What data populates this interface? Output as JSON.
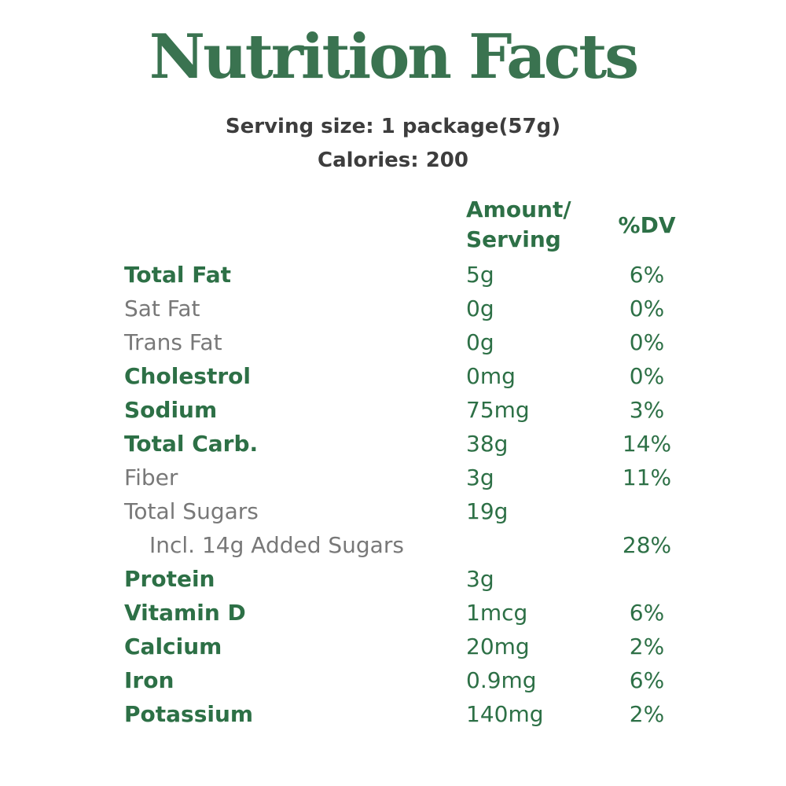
{
  "title": "Nutrition Facts",
  "serving": {
    "serving_size": "Serving size: 1 package(57g)",
    "calories": "Calories: 200"
  },
  "table": {
    "header": {
      "amount_line1": "Amount/",
      "amount_line2": "Serving",
      "dv": "%DV"
    },
    "rows": [
      {
        "label": "Total Fat",
        "amount": "5g",
        "dv": "6%",
        "emphasis": true,
        "indent": false
      },
      {
        "label": "Sat Fat",
        "amount": "0g",
        "dv": "0%",
        "emphasis": false,
        "indent": false
      },
      {
        "label": "Trans Fat",
        "amount": "0g",
        "dv": "0%",
        "emphasis": false,
        "indent": false
      },
      {
        "label": "Cholestrol",
        "amount": "0mg",
        "dv": "0%",
        "emphasis": true,
        "indent": false
      },
      {
        "label": "Sodium",
        "amount": "75mg",
        "dv": "3%",
        "emphasis": true,
        "indent": false
      },
      {
        "label": "Total Carb.",
        "amount": "38g",
        "dv": "14%",
        "emphasis": true,
        "indent": false
      },
      {
        "label": "Fiber",
        "amount": "3g",
        "dv": "11%",
        "emphasis": false,
        "indent": false
      },
      {
        "label": "Total Sugars",
        "amount": "19g",
        "dv": "",
        "emphasis": false,
        "indent": false
      },
      {
        "label": "Incl. 14g Added Sugars",
        "amount": "",
        "dv": "28%",
        "emphasis": false,
        "indent": true
      },
      {
        "label": "Protein",
        "amount": "3g",
        "dv": "",
        "emphasis": true,
        "indent": false
      },
      {
        "label": "Vitamin D",
        "amount": "1mcg",
        "dv": "6%",
        "emphasis": true,
        "indent": false
      },
      {
        "label": "Calcium",
        "amount": "20mg",
        "dv": "2%",
        "emphasis": true,
        "indent": false
      },
      {
        "label": "Iron",
        "amount": "0.9mg",
        "dv": "6%",
        "emphasis": true,
        "indent": false
      },
      {
        "label": "Potassium",
        "amount": "140mg",
        "dv": "2%",
        "emphasis": true,
        "indent": false
      }
    ]
  },
  "colors": {
    "title_green": "#3a7350",
    "table_green": "#2d7046",
    "muted_gray": "#787878",
    "dark_gray": "#3d3d3d",
    "background": "#ffffff"
  }
}
